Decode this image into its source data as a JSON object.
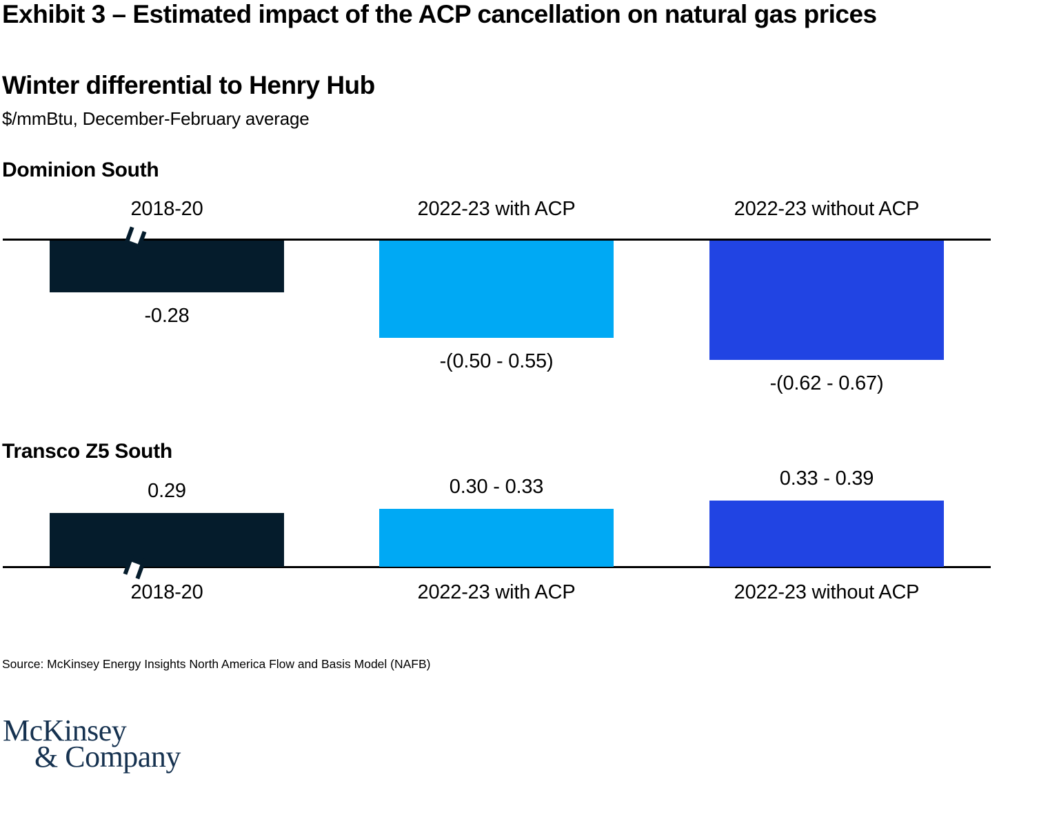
{
  "header": {
    "exhibit_title": "Exhibit 3 – Estimated impact of the ACP cancellation on natural gas prices",
    "chart_title": "Winter differential to Henry Hub",
    "chart_subtitle": "$/mmBtu, December-February average"
  },
  "chart_data": [
    {
      "type": "bar",
      "group": "Dominion South",
      "categories": [
        "2018-20",
        "2022-23 with ACP",
        "2022-23 without ACP"
      ],
      "values": [
        -0.28,
        -0.525,
        -0.645
      ],
      "value_ranges": [
        [
          -0.28,
          -0.28
        ],
        [
          -0.5,
          -0.55
        ],
        [
          -0.62,
          -0.67
        ]
      ],
      "value_labels": [
        "-0.28",
        "-(0.50 - 0.55)",
        "-(0.62 - 0.67)"
      ],
      "bar_colors": [
        "#051C2C",
        "#00A9F4",
        "#2144E3"
      ],
      "axis_break_bar": 0,
      "ylim": [
        -0.7,
        0
      ],
      "grid": "off",
      "legend": "none"
    },
    {
      "type": "bar",
      "group": "Transco Z5 South",
      "categories": [
        "2018-20",
        "2022-23 with ACP",
        "2022-23 without ACP"
      ],
      "values": [
        0.29,
        0.315,
        0.36
      ],
      "value_ranges": [
        [
          0.29,
          0.29
        ],
        [
          0.3,
          0.33
        ],
        [
          0.33,
          0.39
        ]
      ],
      "value_labels": [
        "0.29",
        "0.30 - 0.33",
        "0.33 - 0.39"
      ],
      "bar_colors": [
        "#051C2C",
        "#00A9F4",
        "#2144E3"
      ],
      "axis_break_bar": 0,
      "ylim": [
        0,
        0.4
      ],
      "grid": "off",
      "legend": "none"
    }
  ],
  "colors": {
    "dark_navy": "#051C2C",
    "cyan": "#00A9F4",
    "blue": "#2144E3",
    "axis": "#000000",
    "logo": "#163250"
  },
  "source": "Source: McKinsey Energy Insights North America Flow and Basis Model (NAFB)",
  "logo": {
    "line1": "McKinsey",
    "line2": "& Company"
  }
}
